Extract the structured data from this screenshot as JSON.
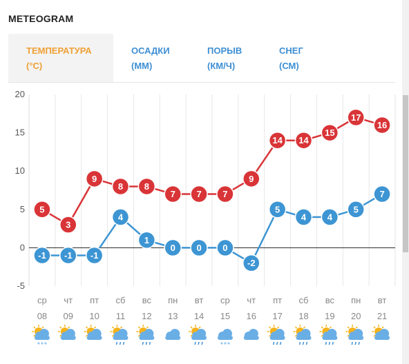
{
  "header": {
    "title": "METEOGRAM"
  },
  "tabs": [
    {
      "line1": "ТЕМПЕРАТУРА",
      "line2": "(°C)",
      "active": true
    },
    {
      "line1": "ОСАДКИ",
      "line2": "(ММ)",
      "active": false
    },
    {
      "line1": "ПОРЫВ",
      "line2": "(КМ/Ч)",
      "active": false
    },
    {
      "line1": "СНЕГ",
      "line2": "(СМ)",
      "active": false
    }
  ],
  "colors": {
    "max_series": "#d93437",
    "min_series": "#3d95d3",
    "active_tab": "#f0a034",
    "tab": "#3d8fd3"
  },
  "chart_data": {
    "type": "line",
    "ylim": [
      -5,
      20
    ],
    "yticks": [
      "20",
      "15",
      "10",
      "5",
      "0",
      "-5"
    ],
    "grid": true,
    "categories": [
      {
        "day": "ср",
        "date": "08",
        "icon": "partly-cloudy-snow-icon"
      },
      {
        "day": "чт",
        "date": "09",
        "icon": "partly-cloudy-icon"
      },
      {
        "day": "пт",
        "date": "10",
        "icon": "partly-cloudy-icon"
      },
      {
        "day": "сб",
        "date": "11",
        "icon": "partly-cloudy-rain-icon"
      },
      {
        "day": "вс",
        "date": "12",
        "icon": "partly-cloudy-rain-icon"
      },
      {
        "day": "пн",
        "date": "13",
        "icon": "cloudy-icon"
      },
      {
        "day": "вт",
        "date": "14",
        "icon": "partly-cloudy-rain-icon"
      },
      {
        "day": "ср",
        "date": "15",
        "icon": "cloudy-snow-icon"
      },
      {
        "day": "чт",
        "date": "16",
        "icon": "cloudy-icon"
      },
      {
        "day": "пт",
        "date": "17",
        "icon": "partly-cloudy-rain-icon"
      },
      {
        "day": "сб",
        "date": "18",
        "icon": "partly-cloudy-rain-icon"
      },
      {
        "day": "вс",
        "date": "19",
        "icon": "partly-cloudy-rain-icon"
      },
      {
        "day": "пн",
        "date": "20",
        "icon": "partly-cloudy-rain-icon"
      },
      {
        "day": "вт",
        "date": "21",
        "icon": "partly-cloudy-icon"
      }
    ],
    "series": [
      {
        "key": "max",
        "values": [
          5,
          3,
          9,
          8,
          8,
          7,
          7,
          7,
          9,
          14,
          14,
          15,
          17,
          16
        ]
      },
      {
        "key": "min",
        "values": [
          -1,
          -1,
          -1,
          4,
          1,
          0,
          0,
          0,
          -2,
          5,
          4,
          4,
          5,
          7
        ]
      }
    ]
  }
}
